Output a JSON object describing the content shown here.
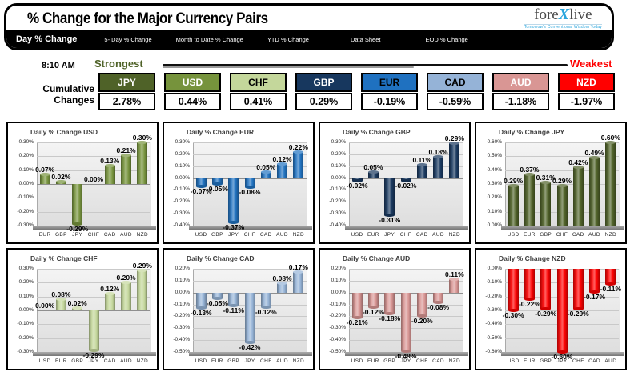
{
  "header": {
    "title": "% Change for the Major Currency Pairs",
    "logo": {
      "fore": "fore",
      "x": "X",
      "live": "live",
      "tagline": "Tomorrow's Conventional Wisdom Today"
    }
  },
  "tabs": [
    {
      "label": "Day % Change",
      "active": true
    },
    {
      "label": "5- Day % Change",
      "active": false
    },
    {
      "label": "Month to Date % Change",
      "active": false
    },
    {
      "label": "YTD % Change",
      "active": false
    },
    {
      "label": "Data Sheet",
      "active": false
    },
    {
      "label": "EOD % Change",
      "active": false
    }
  ],
  "ranking": {
    "time": "8:10 AM",
    "strongest_label": "Strongest",
    "weakest_label": "Weakest",
    "strongest_color": "#4f6228",
    "weakest_color": "#ff0000",
    "cumulative_line1": "Cumulative",
    "cumulative_line2": "Changes",
    "currencies": [
      {
        "code": "JPY",
        "value": "2.78%",
        "color": "#4f6228",
        "text_color": "#ffffff"
      },
      {
        "code": "USD",
        "value": "0.44%",
        "color": "#76933c",
        "text_color": "#ffffff"
      },
      {
        "code": "CHF",
        "value": "0.41%",
        "color": "#c4d79b",
        "text_color": "#000000"
      },
      {
        "code": "GBP",
        "value": "0.29%",
        "color": "#17375e",
        "text_color": "#ffffff"
      },
      {
        "code": "EUR",
        "value": "-0.19%",
        "color": "#1f71c0",
        "text_color": "#000000"
      },
      {
        "code": "CAD",
        "value": "-0.59%",
        "color": "#95b3d7",
        "text_color": "#000000"
      },
      {
        "code": "AUD",
        "value": "-1.18%",
        "color": "#d99694",
        "text_color": "#ffffff"
      },
      {
        "code": "NZD",
        "value": "-1.97%",
        "color": "#ff0000",
        "text_color": "#ffffff"
      }
    ]
  },
  "chart_data": [
    {
      "type": "bar",
      "title": "Daily % Change USD",
      "color": "#76933c",
      "categories": [
        "EUR",
        "GBP",
        "JPY",
        "CHF",
        "CAD",
        "AUD",
        "NZD"
      ],
      "values": [
        0.07,
        0.02,
        -0.29,
        0.0,
        0.13,
        0.21,
        0.3
      ],
      "labels": [
        "0.07%",
        "0.02%",
        "-0.29%",
        "0.00%",
        "0.13%",
        "0.21%",
        "0.30%"
      ],
      "ylim": [
        -0.3,
        0.3
      ],
      "yticks": [
        "0.30%",
        "0.20%",
        "0.10%",
        "0.00%",
        "-0.10%",
        "-0.20%",
        "-0.30%"
      ]
    },
    {
      "type": "bar",
      "title": "Daily % Change EUR",
      "color": "#1f71c0",
      "categories": [
        "USD",
        "GBP",
        "JPY",
        "CHF",
        "CAD",
        "AUD",
        "NZD"
      ],
      "values": [
        -0.07,
        -0.05,
        -0.37,
        -0.08,
        0.05,
        0.12,
        0.22
      ],
      "labels": [
        "-0.07%",
        "-0.05%",
        "-0.37%",
        "-0.08%",
        "0.05%",
        "0.12%",
        "0.22%"
      ],
      "ylim": [
        -0.4,
        0.3
      ],
      "yticks": [
        "0.30%",
        "0.20%",
        "0.10%",
        "0.00%",
        "-0.10%",
        "-0.20%",
        "-0.30%",
        "-0.40%"
      ]
    },
    {
      "type": "bar",
      "title": "Daily % Change GBP",
      "color": "#17375e",
      "categories": [
        "USD",
        "EUR",
        "JPY",
        "CHF",
        "CAD",
        "AUD",
        "NZD"
      ],
      "values": [
        -0.02,
        0.05,
        -0.31,
        -0.02,
        0.11,
        0.18,
        0.29
      ],
      "labels": [
        "-0.02%",
        "0.05%",
        "-0.31%",
        "-0.02%",
        "0.11%",
        "0.18%",
        "0.29%"
      ],
      "ylim": [
        -0.4,
        0.3
      ],
      "yticks": [
        "0.30%",
        "0.20%",
        "0.10%",
        "0.00%",
        "-0.10%",
        "-0.20%",
        "-0.30%",
        "-0.40%"
      ]
    },
    {
      "type": "bar",
      "title": "Daily % Change JPY",
      "color": "#4f6228",
      "categories": [
        "USD",
        "EUR",
        "GBP",
        "CHF",
        "CAD",
        "AUD",
        "NZD"
      ],
      "values": [
        0.29,
        0.37,
        0.31,
        0.29,
        0.42,
        0.49,
        0.6
      ],
      "labels": [
        "0.29%",
        "0.37%",
        "0.31%",
        "0.29%",
        "0.42%",
        "0.49%",
        "0.60%"
      ],
      "ylim": [
        0.0,
        0.6
      ],
      "yticks": [
        "0.60%",
        "0.50%",
        "0.40%",
        "0.30%",
        "0.20%",
        "0.10%",
        "0.00%"
      ]
    },
    {
      "type": "bar",
      "title": "Daily % Change CHF",
      "color": "#c4d79b",
      "categories": [
        "USD",
        "EUR",
        "GBP",
        "JPY",
        "CAD",
        "AUD",
        "NZD"
      ],
      "values": [
        0.0,
        0.08,
        0.02,
        -0.29,
        0.12,
        0.2,
        0.29
      ],
      "labels": [
        "0.00%",
        "0.08%",
        "0.02%",
        "-0.29%",
        "0.12%",
        "0.20%",
        "0.29%"
      ],
      "ylim": [
        -0.3,
        0.3
      ],
      "yticks": [
        "0.30%",
        "0.20%",
        "0.10%",
        "0.00%",
        "-0.10%",
        "-0.20%",
        "-0.30%"
      ]
    },
    {
      "type": "bar",
      "title": "Daily % Change CAD",
      "color": "#95b3d7",
      "categories": [
        "USD",
        "EUR",
        "GBP",
        "JPY",
        "CHF",
        "AUD",
        "NZD"
      ],
      "values": [
        -0.13,
        -0.05,
        -0.11,
        -0.42,
        -0.12,
        0.08,
        0.17
      ],
      "labels": [
        "-0.13%",
        "-0.05%",
        "-0.11%",
        "-0.42%",
        "-0.12%",
        "0.08%",
        "0.17%"
      ],
      "ylim": [
        -0.5,
        0.2
      ],
      "yticks": [
        "0.20%",
        "0.10%",
        "0.00%",
        "-0.10%",
        "-0.20%",
        "-0.30%",
        "-0.40%",
        "-0.50%"
      ]
    },
    {
      "type": "bar",
      "title": "Daily % Change AUD",
      "color": "#d99694",
      "categories": [
        "USD",
        "EUR",
        "GBP",
        "JPY",
        "CHF",
        "CAD",
        "NZD"
      ],
      "values": [
        -0.21,
        -0.12,
        -0.18,
        -0.49,
        -0.2,
        -0.08,
        0.11
      ],
      "labels": [
        "-0.21%",
        "-0.12%",
        "-0.18%",
        "-0.49%",
        "-0.20%",
        "-0.08%",
        "0.11%"
      ],
      "ylim": [
        -0.5,
        0.2
      ],
      "yticks": [
        "0.20%",
        "0.10%",
        "0.00%",
        "-0.10%",
        "-0.20%",
        "-0.30%",
        "-0.40%",
        "-0.50%"
      ]
    },
    {
      "type": "bar",
      "title": "Daily % Change NZD",
      "color": "#ff0000",
      "categories": [
        "USD",
        "EUR",
        "GBP",
        "JPY",
        "CHF",
        "CAD",
        "AUD"
      ],
      "values": [
        -0.3,
        -0.22,
        -0.29,
        -0.6,
        -0.29,
        -0.17,
        -0.11
      ],
      "labels": [
        "-0.30%",
        "-0.22%",
        "-0.29%",
        "-0.60%",
        "-0.29%",
        "-0.17%",
        "-0.11%"
      ],
      "ylim": [
        -0.6,
        0.0
      ],
      "yticks": [
        "0.00%",
        "-0.10%",
        "-0.20%",
        "-0.30%",
        "-0.40%",
        "-0.50%",
        "-0.60%"
      ]
    }
  ]
}
